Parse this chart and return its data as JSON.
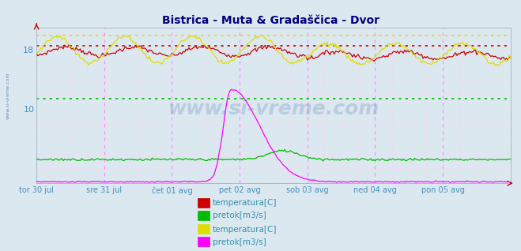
{
  "title": "Bistrica - Muta & Gradaščica - Dvor",
  "title_color": "#000080",
  "title_fontsize": 10,
  "bg_color": "#dce8f0",
  "plot_bg_color": "#dce8f0",
  "x_label_color": "#4090c0",
  "xlim": [
    0,
    336
  ],
  "ylim": [
    0,
    21
  ],
  "yticks": [
    10,
    18
  ],
  "xtick_labels": [
    "tor 30 jul",
    "sre 31 jul",
    "čet 01 avg",
    "pet 02 avg",
    "sob 03 avg",
    "ned 04 avg",
    "pon 05 avg"
  ],
  "xtick_positions": [
    0,
    48,
    96,
    144,
    192,
    240,
    288
  ],
  "legend_items": [
    {
      "label": "temperatura[C]",
      "color": "#cc0000"
    },
    {
      "label": "pretok[m3/s]",
      "color": "#00cc00"
    },
    {
      "label": "temperatura[C]",
      "color": "#ffff00"
    },
    {
      "label": "pretok[m3/s]",
      "color": "#ff00ff"
    }
  ],
  "watermark": "www.si-vreme.com",
  "watermark_color": "#2050a0",
  "watermark_alpha": 0.18,
  "hline_red": 18.6,
  "hline_green": 11.4,
  "hline_yellow": 19.9,
  "n_points": 337,
  "color_red": "#cc0000",
  "color_green": "#00bb00",
  "color_yellow": "#dddd00",
  "color_magenta": "#ff00ff",
  "side_label": "www.si-vreme.com"
}
